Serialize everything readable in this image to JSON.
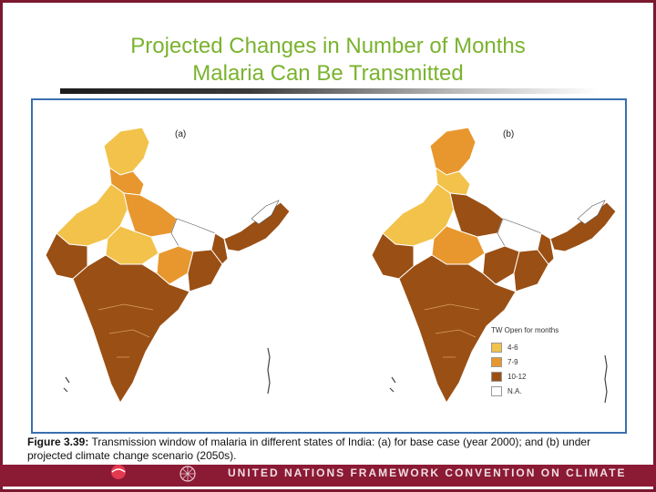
{
  "slide": {
    "title_line1": "Projected Changes in Number of Months",
    "title_line2": "Malaria Can Be Transmitted"
  },
  "figure": {
    "panel_a_label": "(a)",
    "panel_b_label": "(b)",
    "legend": {
      "title": "TW Open for months",
      "items": [
        {
          "label": "4-6",
          "color": "#f2c24a"
        },
        {
          "label": "7-9",
          "color": "#e8972e"
        },
        {
          "label": "10-12",
          "color": "#9a4f14"
        },
        {
          "label": "N.A.",
          "color": "#ffffff"
        }
      ]
    },
    "caption_bold": "Figure 3.39:",
    "caption_text": " Transmission window of malaria in different states of India: (a) for base case (year 2000); and (b) under projected climate change scenario (2050s)."
  },
  "footer": {
    "text": "UNITED NATIONS FRAMEWORK CONVENTION ON CLIMATE CHANGE"
  },
  "colors": {
    "title": "#7ab32e",
    "frame": "#7a1830",
    "footer_band": "#8b1a35",
    "panel_border": "#3a6fb0"
  }
}
